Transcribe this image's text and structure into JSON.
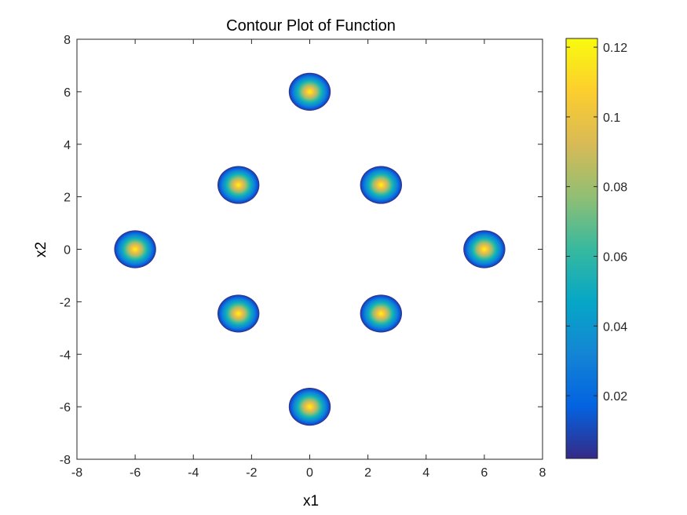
{
  "chart_data": {
    "type": "contour",
    "title": "Contour Plot of Function",
    "xlabel": "x1",
    "ylabel": "x2",
    "xlim": [
      -8,
      8
    ],
    "ylim": [
      -8,
      8
    ],
    "xticks": [
      -8,
      -6,
      -4,
      -2,
      0,
      2,
      4,
      6,
      8
    ],
    "yticks": [
      -8,
      -6,
      -4,
      -2,
      0,
      2,
      4,
      6,
      8
    ],
    "xtick_labels": [
      "-8",
      "-6",
      "-4",
      "-2",
      "0",
      "2",
      "4",
      "6",
      "8"
    ],
    "ytick_labels": [
      "-8",
      "-6",
      "-4",
      "-2",
      "0",
      "2",
      "4",
      "6",
      "8"
    ],
    "peaks": [
      {
        "x": 0,
        "y": 6,
        "value": 0.122
      },
      {
        "x": 2.45,
        "y": 2.45,
        "value": 0.122
      },
      {
        "x": 6,
        "y": 0,
        "value": 0.122
      },
      {
        "x": 2.45,
        "y": -2.45,
        "value": 0.122
      },
      {
        "x": 0,
        "y": -6,
        "value": 0.122
      },
      {
        "x": -2.45,
        "y": -2.45,
        "value": 0.122
      },
      {
        "x": -6,
        "y": 0,
        "value": 0.122
      },
      {
        "x": -2.45,
        "y": 2.45,
        "value": 0.122
      }
    ],
    "peak_extent_radius": 0.72,
    "grid": false,
    "colorbar": {
      "colormap": "parula",
      "range": [
        0.002,
        0.1225
      ],
      "ticks": [
        0.02,
        0.04,
        0.06,
        0.08,
        0.1,
        0.12
      ],
      "tick_labels": [
        "0.02",
        "0.04",
        "0.06",
        "0.08",
        "0.1",
        "0.12"
      ],
      "placement": "right"
    },
    "colors": {
      "parula": [
        "#352a87",
        "#0363e1",
        "#1485d4",
        "#06a7c6",
        "#38b99e",
        "#92bf73",
        "#d9ba56",
        "#fcce2e",
        "#f9fb0e"
      ],
      "axes": "#262626"
    }
  }
}
